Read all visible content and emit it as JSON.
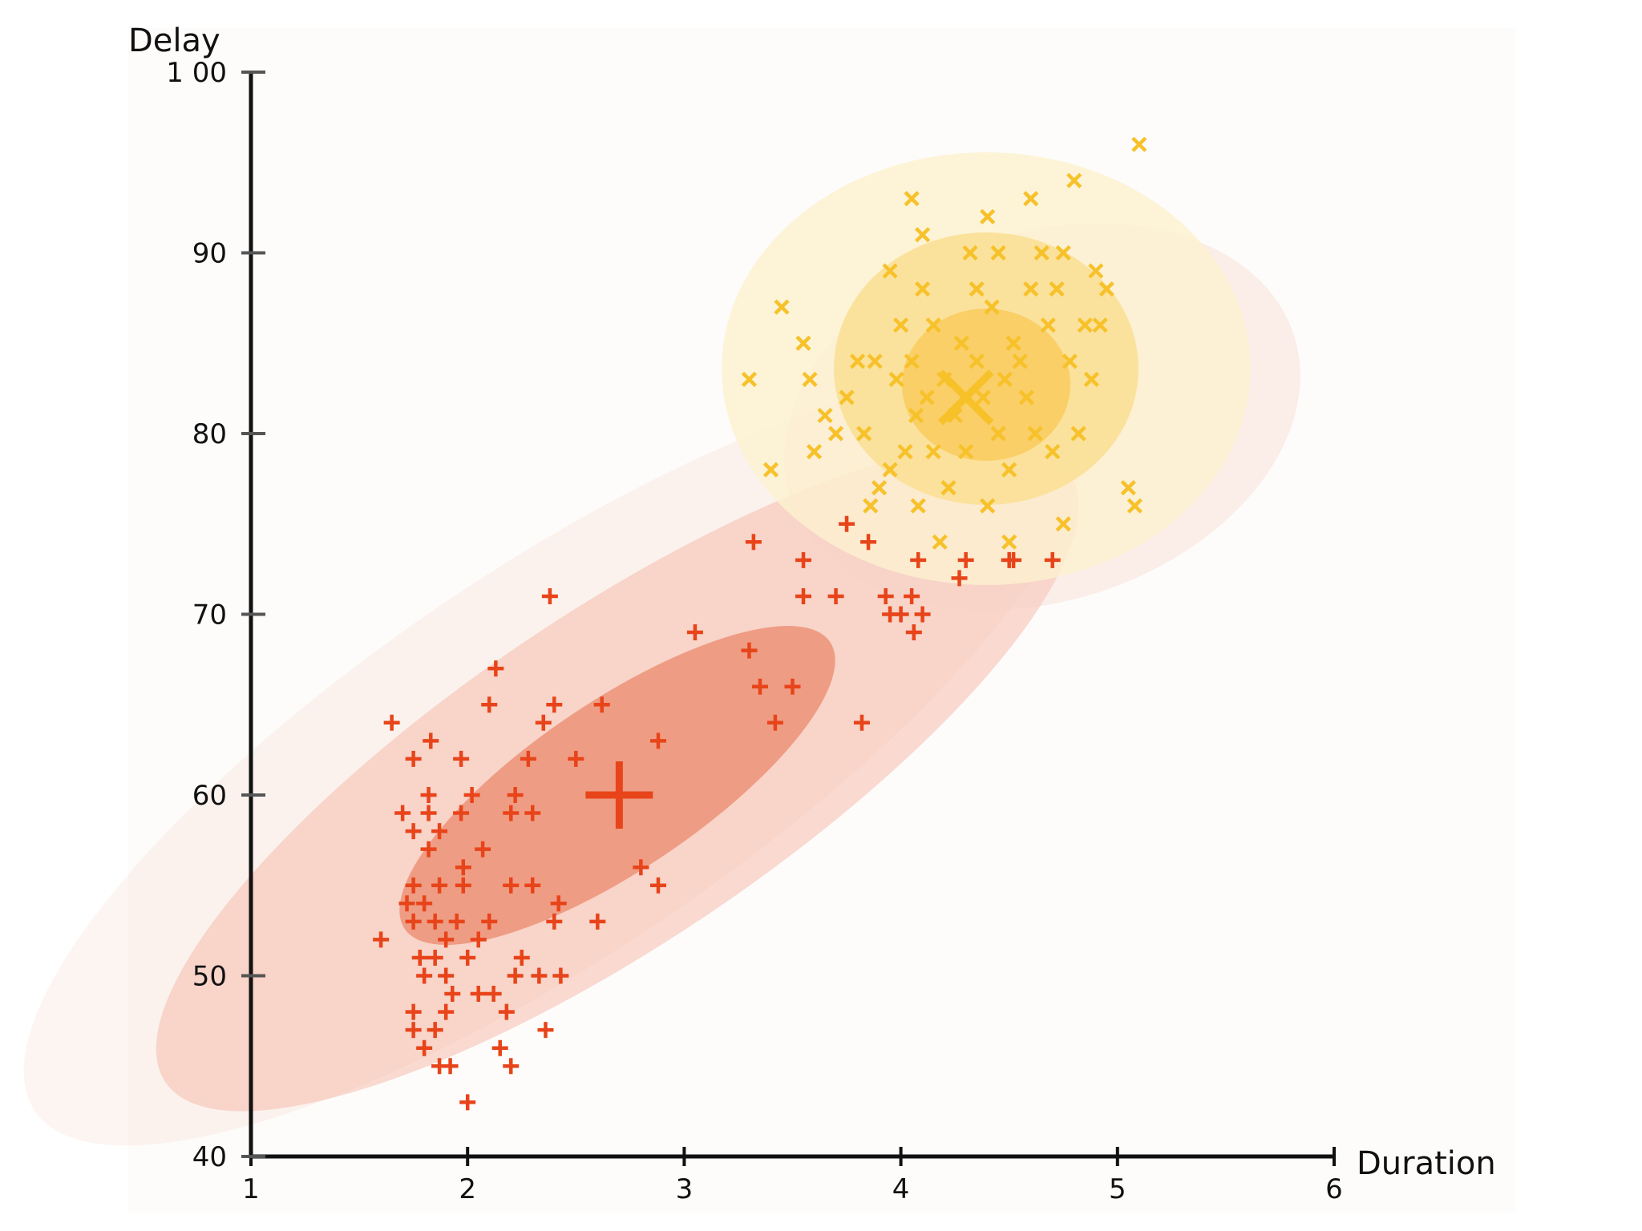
{
  "chart_data": {
    "type": "scatter",
    "title": "",
    "xlabel": "Duration",
    "ylabel": "Delay",
    "xlim": [
      1,
      6
    ],
    "ylim": [
      40,
      100
    ],
    "xticks": [
      1,
      2,
      3,
      4,
      5,
      6
    ],
    "yticks": [
      40,
      50,
      60,
      70,
      80,
      90,
      100
    ],
    "ytick_labels": [
      "40",
      "50",
      "60",
      "70",
      "80",
      "90",
      "1 00"
    ],
    "grid": false,
    "legend": "none",
    "series": [
      {
        "marker": "plus",
        "color": "#e8441a",
        "center": [
          2.7,
          60
        ],
        "points": [
          [
            1.6,
            52
          ],
          [
            1.65,
            64
          ],
          [
            1.7,
            59
          ],
          [
            1.72,
            54
          ],
          [
            1.75,
            62
          ],
          [
            1.75,
            58
          ],
          [
            1.75,
            55
          ],
          [
            1.75,
            53
          ],
          [
            1.75,
            48
          ],
          [
            1.75,
            47
          ],
          [
            1.78,
            51
          ],
          [
            1.8,
            54
          ],
          [
            1.8,
            50
          ],
          [
            1.8,
            46
          ],
          [
            1.82,
            60
          ],
          [
            1.82,
            59
          ],
          [
            1.82,
            57
          ],
          [
            1.83,
            63
          ],
          [
            1.85,
            53
          ],
          [
            1.85,
            51
          ],
          [
            1.85,
            47
          ],
          [
            1.87,
            58
          ],
          [
            1.87,
            55
          ],
          [
            1.87,
            45
          ],
          [
            1.9,
            52
          ],
          [
            1.9,
            50
          ],
          [
            1.9,
            48
          ],
          [
            1.92,
            45
          ],
          [
            1.93,
            49
          ],
          [
            1.95,
            53
          ],
          [
            1.97,
            62
          ],
          [
            1.97,
            59
          ],
          [
            1.98,
            56
          ],
          [
            1.98,
            55
          ],
          [
            2.0,
            51
          ],
          [
            2.0,
            43
          ],
          [
            2.02,
            60
          ],
          [
            2.05,
            52
          ],
          [
            2.05,
            49
          ],
          [
            2.07,
            57
          ],
          [
            2.1,
            65
          ],
          [
            2.1,
            53
          ],
          [
            2.12,
            49
          ],
          [
            2.13,
            67
          ],
          [
            2.15,
            46
          ],
          [
            2.18,
            48
          ],
          [
            2.2,
            59
          ],
          [
            2.2,
            55
          ],
          [
            2.2,
            45
          ],
          [
            2.22,
            60
          ],
          [
            2.22,
            50
          ],
          [
            2.25,
            51
          ],
          [
            2.28,
            62
          ],
          [
            2.3,
            59
          ],
          [
            2.3,
            55
          ],
          [
            2.33,
            50
          ],
          [
            2.35,
            64
          ],
          [
            2.36,
            47
          ],
          [
            2.38,
            71
          ],
          [
            2.4,
            65
          ],
          [
            2.4,
            53
          ],
          [
            2.42,
            54
          ],
          [
            2.43,
            50
          ],
          [
            2.5,
            62
          ],
          [
            2.6,
            53
          ],
          [
            2.62,
            65
          ],
          [
            2.8,
            56
          ],
          [
            2.88,
            55
          ],
          [
            2.88,
            63
          ],
          [
            3.05,
            69
          ],
          [
            3.3,
            68
          ],
          [
            3.32,
            74
          ],
          [
            3.35,
            66
          ],
          [
            3.42,
            64
          ],
          [
            3.5,
            66
          ],
          [
            3.55,
            73
          ],
          [
            3.55,
            71
          ],
          [
            3.7,
            71
          ],
          [
            3.75,
            75
          ],
          [
            3.82,
            64
          ],
          [
            3.85,
            74
          ],
          [
            3.93,
            71
          ],
          [
            3.95,
            70
          ],
          [
            4.0,
            70
          ],
          [
            4.05,
            71
          ],
          [
            4.06,
            69
          ],
          [
            4.08,
            73
          ],
          [
            4.1,
            70
          ],
          [
            4.27,
            72
          ],
          [
            4.3,
            73
          ],
          [
            4.5,
            73
          ],
          [
            4.52,
            73
          ],
          [
            4.7,
            73
          ]
        ]
      },
      {
        "marker": "x",
        "color": "#f7c12a",
        "center": [
          4.3,
          82
        ],
        "points": [
          [
            3.3,
            83
          ],
          [
            3.4,
            78
          ],
          [
            3.45,
            87
          ],
          [
            3.55,
            85
          ],
          [
            3.58,
            83
          ],
          [
            3.6,
            79
          ],
          [
            3.65,
            81
          ],
          [
            3.7,
            80
          ],
          [
            3.75,
            82
          ],
          [
            3.8,
            84
          ],
          [
            3.83,
            80
          ],
          [
            3.86,
            76
          ],
          [
            3.88,
            84
          ],
          [
            3.9,
            77
          ],
          [
            3.95,
            89
          ],
          [
            3.95,
            78
          ],
          [
            3.98,
            83
          ],
          [
            4.0,
            86
          ],
          [
            4.02,
            79
          ],
          [
            4.05,
            93
          ],
          [
            4.05,
            84
          ],
          [
            4.07,
            81
          ],
          [
            4.08,
            76
          ],
          [
            4.1,
            91
          ],
          [
            4.1,
            88
          ],
          [
            4.12,
            82
          ],
          [
            4.15,
            79
          ],
          [
            4.15,
            86
          ],
          [
            4.18,
            74
          ],
          [
            4.2,
            83
          ],
          [
            4.22,
            77
          ],
          [
            4.25,
            81
          ],
          [
            4.28,
            85
          ],
          [
            4.3,
            79
          ],
          [
            4.32,
            90
          ],
          [
            4.35,
            88
          ],
          [
            4.35,
            84
          ],
          [
            4.38,
            82
          ],
          [
            4.4,
            92
          ],
          [
            4.4,
            76
          ],
          [
            4.42,
            87
          ],
          [
            4.45,
            90
          ],
          [
            4.45,
            80
          ],
          [
            4.48,
            83
          ],
          [
            4.5,
            78
          ],
          [
            4.5,
            74
          ],
          [
            4.52,
            85
          ],
          [
            4.55,
            84
          ],
          [
            4.58,
            82
          ],
          [
            4.6,
            93
          ],
          [
            4.6,
            88
          ],
          [
            4.62,
            80
          ],
          [
            4.65,
            90
          ],
          [
            4.68,
            86
          ],
          [
            4.7,
            79
          ],
          [
            4.72,
            88
          ],
          [
            4.75,
            90
          ],
          [
            4.75,
            75
          ],
          [
            4.78,
            84
          ],
          [
            4.8,
            94
          ],
          [
            4.82,
            80
          ],
          [
            4.85,
            86
          ],
          [
            4.88,
            83
          ],
          [
            4.9,
            89
          ],
          [
            4.92,
            86
          ],
          [
            4.95,
            88
          ],
          [
            5.05,
            77
          ],
          [
            5.08,
            76
          ],
          [
            5.1,
            96
          ]
        ]
      }
    ]
  }
}
